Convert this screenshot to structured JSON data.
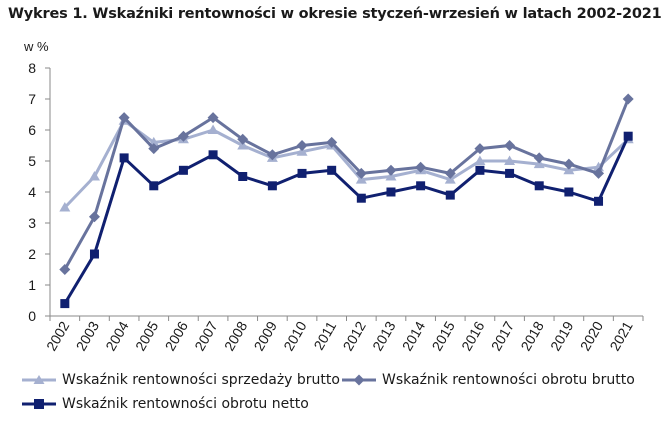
{
  "title": "Wykres 1. Wskaźniki rentowności w okresie styczeń-wrzesień w latach 2002-2021",
  "chart_data": {
    "type": "line",
    "title": "Wykres 1. Wskaźniki rentowności w okresie styczeń-wrzesień w latach 2002-2021",
    "ylabel": "w %",
    "xlabel": "",
    "ylim": [
      0,
      8
    ],
    "yticks": [
      0,
      1,
      2,
      3,
      4,
      5,
      6,
      7,
      8
    ],
    "grid": false,
    "legend": "bottom",
    "categories": [
      "2002",
      "2003",
      "2004",
      "2005",
      "2006",
      "2007",
      "2008",
      "2009",
      "2010",
      "2011",
      "2012",
      "2013",
      "2014",
      "2015",
      "2016",
      "2017",
      "2018",
      "2019",
      "2020",
      "2021"
    ],
    "series": [
      {
        "name": "Wskaźnik rentowności sprzedaży brutto",
        "color": "#a5b0d0",
        "marker": "triangle",
        "values": [
          3.5,
          4.5,
          6.3,
          5.6,
          5.7,
          6.0,
          5.5,
          5.1,
          5.3,
          5.5,
          4.4,
          4.5,
          4.7,
          4.4,
          5.0,
          5.0,
          4.9,
          4.7,
          4.8,
          5.7
        ]
      },
      {
        "name": "Wskaźnik rentowności obrotu brutto",
        "color": "#68739d",
        "marker": "diamond",
        "values": [
          1.5,
          3.2,
          6.4,
          5.4,
          5.8,
          6.4,
          5.7,
          5.2,
          5.5,
          5.6,
          4.6,
          4.7,
          4.8,
          4.6,
          5.4,
          5.5,
          5.1,
          4.9,
          4.6,
          7.0
        ]
      },
      {
        "name": "Wskaźnik rentowności obrotu netto",
        "color": "#102070",
        "marker": "square",
        "values": [
          0.4,
          2.0,
          5.1,
          4.2,
          4.7,
          5.2,
          4.5,
          4.2,
          4.6,
          4.7,
          3.8,
          4.0,
          4.2,
          3.9,
          4.7,
          4.6,
          4.2,
          4.0,
          3.7,
          5.8
        ]
      }
    ]
  }
}
